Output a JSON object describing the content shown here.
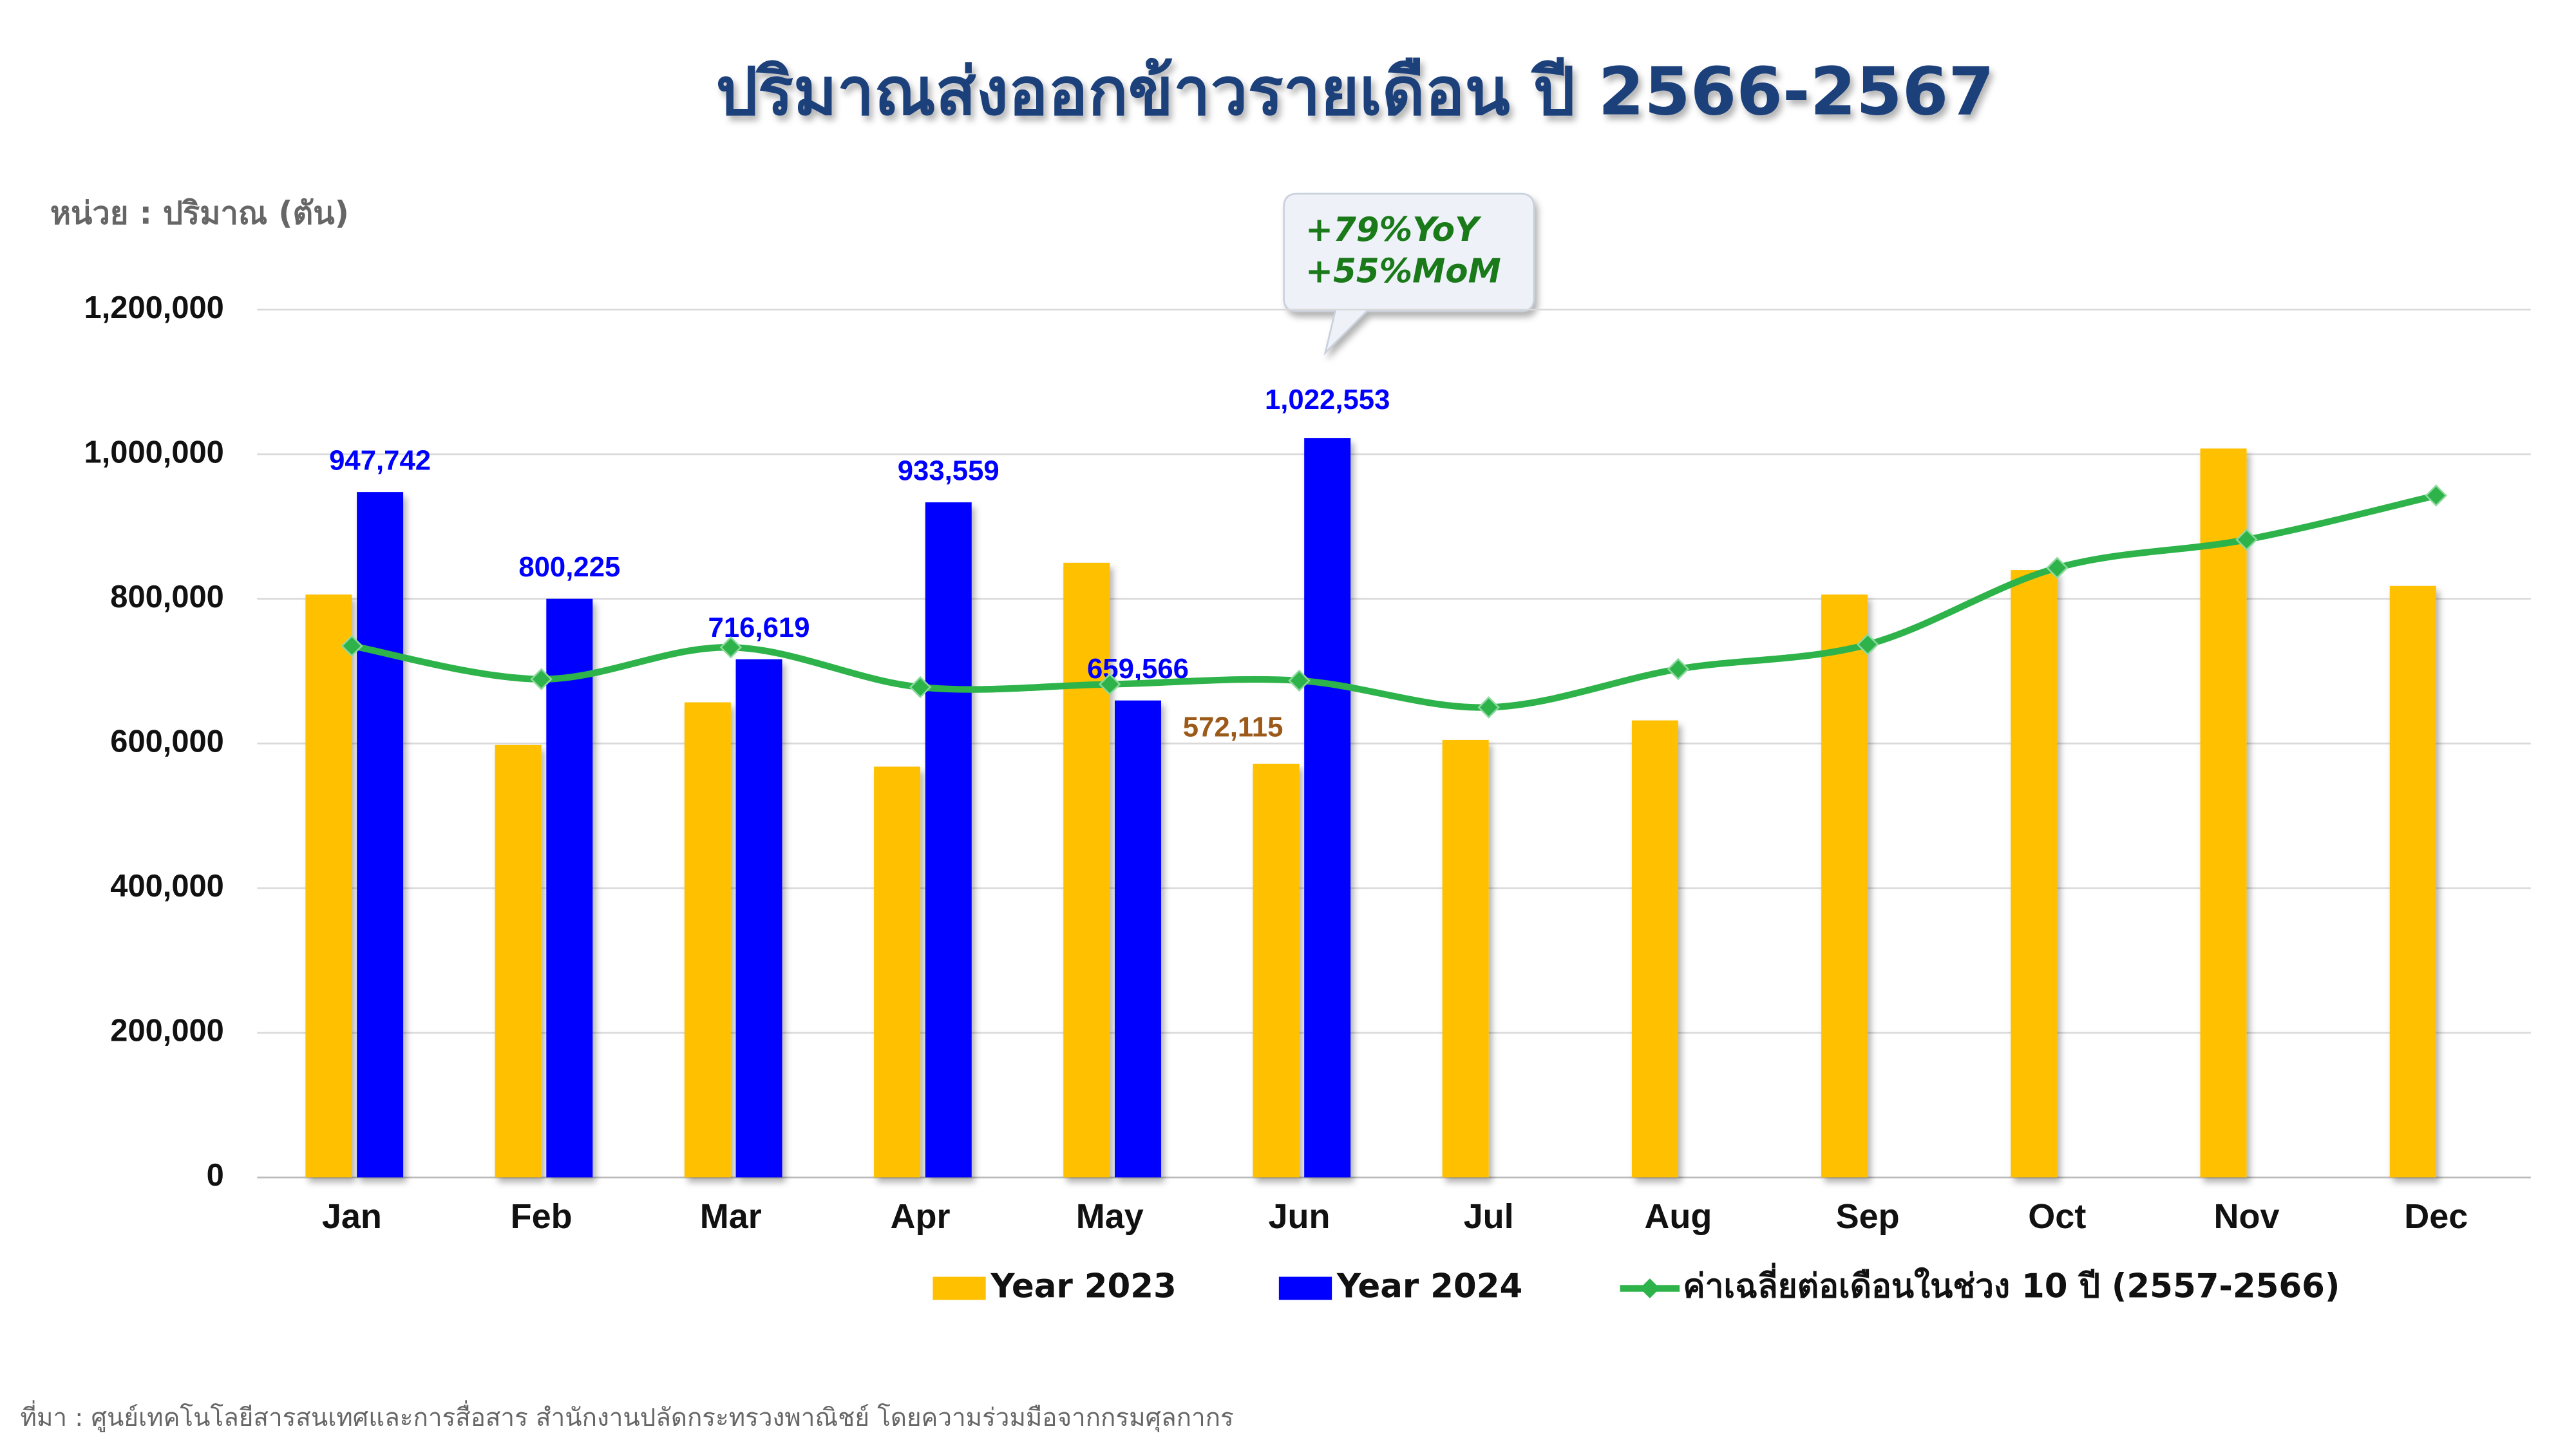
{
  "chart_data": {
    "type": "bar",
    "title": "ปริมาณส่งออกข้าวรายเดือน ปี 2566-2567",
    "y_label": "หน่วย : ปริมาณ (ตัน)",
    "source": "ที่มา : ศูนย์เทคโนโลยีสารสนเทศและการสื่อสาร สำนักงานปลัดกระทรวงพาณิชย์ โดยความร่วมมือจากกรมศุลกากร",
    "annotations": [
      "+79%YoY",
      "+55%MoM"
    ],
    "categories": [
      "Jan",
      "Feb",
      "Mar",
      "Apr",
      "May",
      "Jun",
      "Jul",
      "Aug",
      "Sep",
      "Oct",
      "Nov",
      "Dec"
    ],
    "series": [
      {
        "name": "Year 2023",
        "type": "bar",
        "color": "#ffc000",
        "values": [
          806000,
          598000,
          657000,
          568000,
          850000,
          572115,
          605000,
          632000,
          806000,
          840000,
          1008000,
          818000
        ],
        "value_labels": [
          null,
          null,
          null,
          null,
          null,
          "572,115",
          null,
          null,
          null,
          null,
          null,
          null
        ]
      },
      {
        "name": "Year 2024",
        "type": "bar",
        "color": "#0000ff",
        "values": [
          947742,
          800225,
          716619,
          933559,
          659566,
          1022553,
          null,
          null,
          null,
          null,
          null,
          null
        ],
        "value_labels": [
          "947,742",
          "800,225",
          "716,619",
          "933,559",
          "659,566",
          "1,022,553",
          null,
          null,
          null,
          null,
          null,
          null
        ]
      },
      {
        "name": "ค่าเฉลี่ยต่อเดือนในช่วง  10 ปี (2557-2566)",
        "type": "line",
        "color": "#2db34a",
        "values": [
          735000,
          689000,
          733000,
          678000,
          682000,
          687000,
          650000,
          703000,
          737000,
          843000,
          882000,
          943000
        ]
      }
    ],
    "ylim": [
      0,
      1200000
    ],
    "yticks": [
      0,
      {
        "value": 200000,
        "label": "200,000"
      },
      {
        "value": 400000,
        "label": "400,000"
      },
      {
        "value": 600000,
        "label": "600,000"
      },
      {
        "value": 800000,
        "label": "800,000"
      },
      {
        "value": 1000000,
        "label": "1,000,000"
      },
      {
        "value": 1200000,
        "label": "1,200,000"
      }
    ],
    "grid": true
  }
}
